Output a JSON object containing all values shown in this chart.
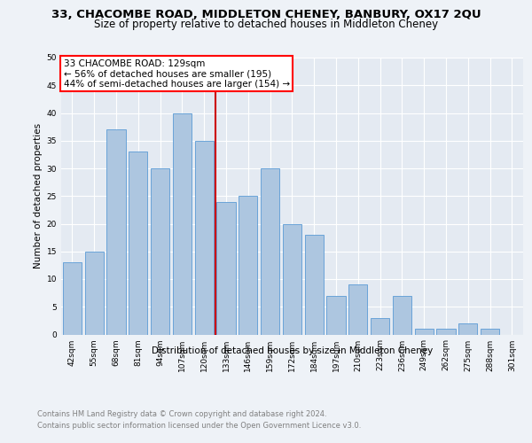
{
  "title": "33, CHACOMBE ROAD, MIDDLETON CHENEY, BANBURY, OX17 2QU",
  "subtitle": "Size of property relative to detached houses in Middleton Cheney",
  "xlabel": "Distribution of detached houses by size in Middleton Cheney",
  "ylabel": "Number of detached properties",
  "footer_line1": "Contains HM Land Registry data © Crown copyright and database right 2024.",
  "footer_line2": "Contains public sector information licensed under the Open Government Licence v3.0.",
  "categories": [
    "42sqm",
    "55sqm",
    "68sqm",
    "81sqm",
    "94sqm",
    "107sqm",
    "120sqm",
    "133sqm",
    "146sqm",
    "159sqm",
    "172sqm",
    "184sqm",
    "197sqm",
    "210sqm",
    "223sqm",
    "236sqm",
    "249sqm",
    "262sqm",
    "275sqm",
    "288sqm",
    "301sqm"
  ],
  "values": [
    13,
    15,
    37,
    33,
    30,
    40,
    35,
    24,
    25,
    30,
    20,
    18,
    7,
    9,
    3,
    7,
    1,
    1,
    2,
    1,
    0
  ],
  "bar_color": "#adc6e0",
  "bar_edge_color": "#5b9bd5",
  "annotation_text_line1": "33 CHACOMBE ROAD: 129sqm",
  "annotation_text_line2": "← 56% of detached houses are smaller (195)",
  "annotation_text_line3": "44% of semi-detached houses are larger (154) →",
  "vline_color": "#cc0000",
  "vline_index": 7,
  "ylim": [
    0,
    50
  ],
  "yticks": [
    0,
    5,
    10,
    15,
    20,
    25,
    30,
    35,
    40,
    45,
    50
  ],
  "bg_color": "#eef2f7",
  "plot_bg_color": "#e4eaf2",
  "grid_color": "#ffffff",
  "title_fontsize": 9.5,
  "subtitle_fontsize": 8.5,
  "axis_label_fontsize": 7.5,
  "tick_fontsize": 6.5,
  "footer_fontsize": 6.0,
  "annotation_fontsize": 7.5
}
